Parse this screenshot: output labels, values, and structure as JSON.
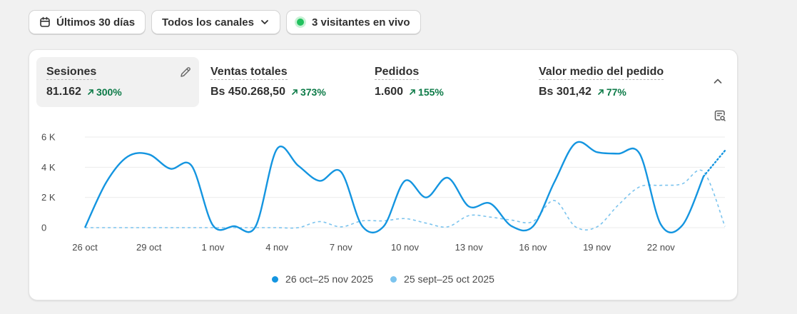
{
  "toolbar": {
    "date_range_label": "Últimos 30 días",
    "channel_label": "Todos los canales",
    "live_label": "3 visitantes en vivo"
  },
  "metrics": [
    {
      "title": "Sesiones",
      "value": "81.162",
      "change": "300%"
    },
    {
      "title": "Ventas totales",
      "value": "Bs 450.268,50",
      "change": "373%"
    },
    {
      "title": "Pedidos",
      "value": "1.600",
      "change": "155%"
    },
    {
      "title": "Valor medio del pedido",
      "value": "Bs 301,42",
      "change": "77%"
    }
  ],
  "colors": {
    "current": "#1495e0",
    "previous": "#7cc4ee",
    "positive": "#0c7a47"
  },
  "icons": [
    "calendar-icon",
    "chevron-down-icon",
    "pencil-icon",
    "chevron-up-icon",
    "chart-zoom-icon",
    "arrow-up-right-icon"
  ],
  "chart_data": {
    "type": "line",
    "x": [
      "26 oct",
      "27 oct",
      "28 oct",
      "29 oct",
      "30 oct",
      "31 oct",
      "1 nov",
      "2 nov",
      "3 nov",
      "4 nov",
      "5 nov",
      "6 nov",
      "7 nov",
      "8 nov",
      "9 nov",
      "10 nov",
      "11 nov",
      "12 nov",
      "13 nov",
      "14 nov",
      "15 nov",
      "16 nov",
      "17 nov",
      "18 nov",
      "19 nov",
      "20 nov",
      "21 nov",
      "22 nov",
      "23 nov",
      "24 nov",
      "25 nov"
    ],
    "x_ticks": [
      "26 oct",
      "29 oct",
      "1 nov",
      "4 nov",
      "7 nov",
      "10 nov",
      "13 nov",
      "16 nov",
      "19 nov",
      "22 nov"
    ],
    "y_ticks": [
      0,
      2000,
      4000,
      6000
    ],
    "y_tick_labels": [
      "0",
      "2 K",
      "4 K",
      "6 K"
    ],
    "ylim": [
      0,
      6000
    ],
    "grid": true,
    "legend_position": "bottom-center",
    "series": [
      {
        "name": "26 oct–25 nov 2025",
        "style": "solid",
        "values": [
          0,
          3000,
          4700,
          4850,
          3900,
          4100,
          150,
          100,
          80,
          5200,
          4100,
          3100,
          3700,
          100,
          80,
          3100,
          2000,
          3300,
          1400,
          1600,
          100,
          80,
          3000,
          5600,
          5000,
          4900,
          4900,
          200,
          150,
          3400,
          5100
        ],
        "partial_from_index": 29
      },
      {
        "name": "25 sept–25 oct 2025",
        "style": "dashed",
        "values": [
          0,
          0,
          0,
          0,
          0,
          0,
          0,
          0,
          0,
          0,
          0,
          400,
          50,
          450,
          450,
          600,
          300,
          50,
          800,
          700,
          500,
          400,
          1800,
          50,
          50,
          1500,
          2700,
          2800,
          2900,
          3700,
          80
        ]
      }
    ]
  }
}
